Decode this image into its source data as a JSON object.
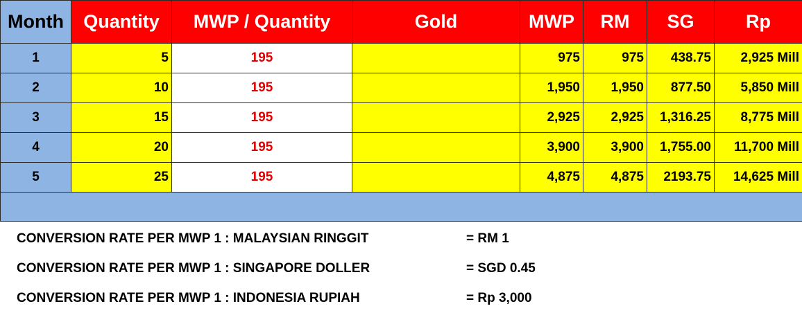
{
  "headers": {
    "month": "Month",
    "quantity": "Quantity",
    "mwp_per_quantity": "MWP / Quantity",
    "gold": "Gold",
    "mwp": "MWP",
    "rm": "RM",
    "sg": "SG",
    "rp": "Rp"
  },
  "rows": [
    {
      "month": "1",
      "quantity": "5",
      "mwp_per_quantity": "195",
      "gold": "",
      "mwp": "975",
      "rm": "975",
      "sg": "438.75",
      "rp": "2,925 Mill"
    },
    {
      "month": "2",
      "quantity": "10",
      "mwp_per_quantity": "195",
      "gold": "",
      "mwp": "1,950",
      "rm": "1,950",
      "sg": "877.50",
      "rp": "5,850 Mill"
    },
    {
      "month": "3",
      "quantity": "15",
      "mwp_per_quantity": "195",
      "gold": "",
      "mwp": "2,925",
      "rm": "2,925",
      "sg": "1,316.25",
      "rp": "8,775 Mill"
    },
    {
      "month": "4",
      "quantity": "20",
      "mwp_per_quantity": "195",
      "gold": "",
      "mwp": "3,900",
      "rm": "3,900",
      "sg": "1,755.00",
      "rp": "11,700 Mill"
    },
    {
      "month": "5",
      "quantity": "25",
      "mwp_per_quantity": "195",
      "gold": "",
      "mwp": "4,875",
      "rm": "4,875",
      "sg": "2193.75",
      "rp": "14,625 Mill"
    }
  ],
  "conversion_notes": [
    {
      "label": "CONVERSION RATE PER MWP 1 : MALAYSIAN RINGGIT",
      "value": "= RM  1"
    },
    {
      "label": "CONVERSION RATE PER MWP 1 : SINGAPORE DOLLER",
      "value": "= SGD 0.45"
    },
    {
      "label": "CONVERSION RATE PER MWP 1 : INDONESIA RUPIAH",
      "value": "= Rp 3,000"
    }
  ],
  "colors": {
    "header_red": "#ff0000",
    "month_blue": "#8db4e2",
    "cell_yellow": "#ffff00",
    "rate_red_text": "#e00000"
  }
}
